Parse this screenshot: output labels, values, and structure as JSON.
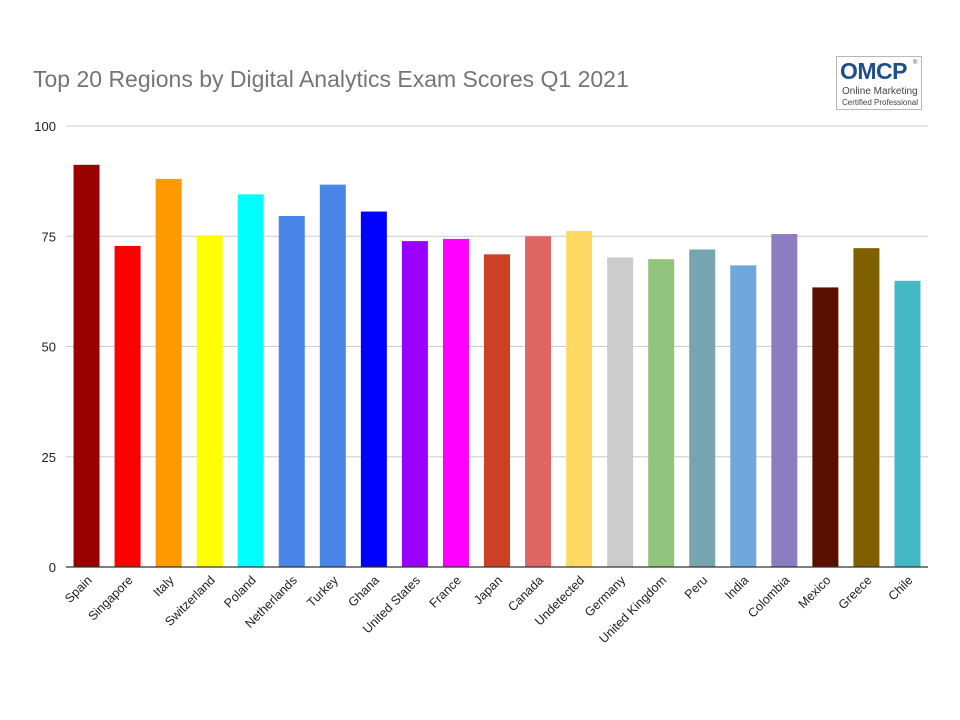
{
  "chart_data": {
    "type": "bar",
    "title": "Top 20 Regions by Digital Analytics Exam Scores Q1 2021",
    "xlabel": "",
    "ylabel": "",
    "ylim": [
      0,
      100
    ],
    "yticks": [
      0,
      25,
      50,
      75,
      100
    ],
    "grid": true,
    "legend": "none",
    "categories": [
      "Spain",
      "Singapore",
      "Italy",
      "Switzerland",
      "Poland",
      "Netherlands",
      "Turkey",
      "Ghana",
      "United States",
      "France",
      "Japan",
      "Canada",
      "Undetected",
      "Germany",
      "United Kingdom",
      "Peru",
      "India",
      "Colombia",
      "Mexico",
      "Greece",
      "Chile"
    ],
    "values": [
      91.2,
      72.8,
      88,
      75.2,
      84.5,
      79.6,
      86.7,
      80.6,
      73.9,
      74.4,
      70.9,
      75,
      76.2,
      70.2,
      69.8,
      72,
      68.4,
      75.5,
      63.4,
      72.3,
      64.9
    ],
    "colors": [
      "#990000",
      "#ff0000",
      "#ff9900",
      "#ffff00",
      "#00ffff",
      "#4a86e8",
      "#4a86e8",
      "#0000ff",
      "#9900ff",
      "#ff00ff",
      "#cc4125",
      "#e06666",
      "#ffd966",
      "#cccccc",
      "#93c47d",
      "#76a5af",
      "#6fa8dc",
      "#8e7cc3",
      "#5b0f00",
      "#7f6000",
      "#45b8c6"
    ]
  },
  "logo": {
    "word": "OMCP",
    "reg": "®",
    "line1": "Online Marketing",
    "line2": "Certified Professional"
  }
}
